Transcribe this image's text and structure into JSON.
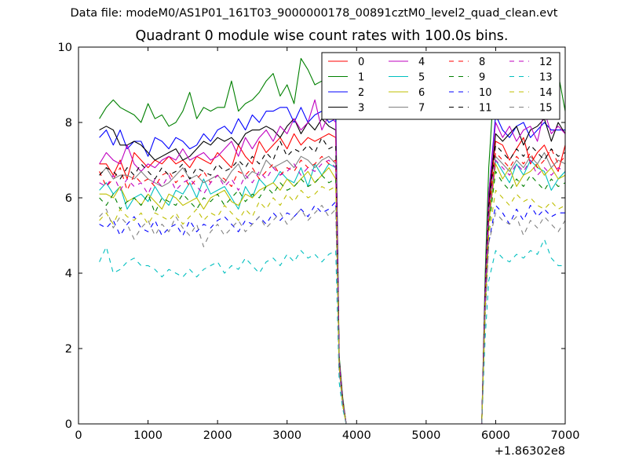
{
  "supertitle": "Data file: modeM0/AS1P01_161T03_9000000178_00891cztM0_level2_quad_clean.evt",
  "title": "Quadrant 0 module wise count rates with 100.0s bins.",
  "chart_data": {
    "type": "line",
    "title": "Quadrant 0 module wise count rates with 100.0s bins.",
    "xlabel": "",
    "ylabel": "",
    "x_offset_label": "+1.86302e8",
    "xlim": [
      0,
      7000
    ],
    "ylim": [
      0,
      10
    ],
    "xticks": [
      0,
      1000,
      2000,
      3000,
      4000,
      5000,
      6000,
      7000
    ],
    "yticks": [
      0,
      2,
      4,
      6,
      8,
      10
    ],
    "grid": false,
    "legend_position": "top-right",
    "legend_columns": 4,
    "x": [
      300,
      400,
      500,
      600,
      700,
      800,
      900,
      1000,
      1100,
      1200,
      1300,
      1400,
      1500,
      1600,
      1700,
      1800,
      1900,
      2000,
      2100,
      2200,
      2300,
      2400,
      2500,
      2600,
      2700,
      2800,
      2900,
      3000,
      3100,
      3200,
      3300,
      3400,
      3500,
      3600,
      3700,
      3750,
      3800,
      3850,
      3900,
      5800,
      5850,
      5900,
      6000,
      6100,
      6200,
      6300,
      6400,
      6500,
      6600,
      6700,
      6800,
      6900,
      7000
    ],
    "series": [
      {
        "name": "0",
        "color": "#ff0000",
        "dash": "solid",
        "values": [
          6.9,
          6.9,
          6.6,
          7.0,
          6.5,
          7.2,
          7.0,
          6.8,
          7.0,
          6.9,
          7.1,
          6.9,
          7.0,
          6.8,
          7.1,
          7.0,
          6.9,
          7.2,
          7.0,
          6.8,
          7.4,
          7.1,
          6.9,
          7.5,
          7.2,
          7.4,
          7.6,
          7.3,
          7.7,
          7.4,
          7.6,
          7.5,
          7.6,
          7.7,
          7.6,
          1.6,
          0.6,
          0.0,
          0.0,
          0.0,
          3.5,
          5.8,
          7.5,
          7.4,
          7.0,
          7.3,
          7.6,
          6.9,
          7.2,
          7.4,
          7.0,
          6.7,
          7.4
        ]
      },
      {
        "name": "1",
        "color": "#008000",
        "dash": "solid",
        "values": [
          8.1,
          8.4,
          8.6,
          8.4,
          8.3,
          8.2,
          8.0,
          8.5,
          8.1,
          8.2,
          7.9,
          8.0,
          8.3,
          8.8,
          8.1,
          8.4,
          8.3,
          8.4,
          8.4,
          9.1,
          8.3,
          8.5,
          8.6,
          8.8,
          9.1,
          9.3,
          8.7,
          9.0,
          8.5,
          9.7,
          9.4,
          9.0,
          9.1,
          8.6,
          8.5,
          1.8,
          0.7,
          0.0,
          0.0,
          0.0,
          4.0,
          6.8,
          9.7,
          9.0,
          8.8,
          8.5,
          9.0,
          8.7,
          8.9,
          9.4,
          8.9,
          9.3,
          8.3
        ]
      },
      {
        "name": "2",
        "color": "#0000ff",
        "dash": "solid",
        "values": [
          7.6,
          7.8,
          7.4,
          7.8,
          7.3,
          7.5,
          7.5,
          7.1,
          7.6,
          7.5,
          7.3,
          7.6,
          7.5,
          7.3,
          7.4,
          7.7,
          7.5,
          7.8,
          7.9,
          7.7,
          8.1,
          7.8,
          8.2,
          8.0,
          8.3,
          8.3,
          8.4,
          8.4,
          8.0,
          8.4,
          8.0,
          8.2,
          8.3,
          8.0,
          8.1,
          1.7,
          0.6,
          0.0,
          0.0,
          0.0,
          3.6,
          6.1,
          8.2,
          7.8,
          7.6,
          7.9,
          8.0,
          7.6,
          7.8,
          8.0,
          7.8,
          7.8,
          7.8
        ]
      },
      {
        "name": "3",
        "color": "#000000",
        "dash": "solid",
        "values": [
          7.8,
          7.9,
          7.8,
          7.4,
          7.4,
          7.5,
          7.4,
          7.2,
          7.0,
          7.1,
          7.2,
          7.3,
          7.0,
          7.1,
          7.3,
          7.5,
          7.4,
          7.6,
          7.5,
          7.6,
          7.4,
          7.7,
          7.8,
          7.8,
          7.9,
          7.8,
          7.6,
          7.9,
          8.1,
          7.7,
          8.0,
          7.8,
          8.1,
          7.9,
          7.8,
          1.7,
          0.6,
          0.0,
          0.0,
          0.0,
          3.6,
          5.9,
          7.7,
          7.5,
          7.7,
          7.9,
          7.4,
          7.8,
          7.9,
          8.1,
          7.5,
          8.0,
          7.7
        ]
      },
      {
        "name": "4",
        "color": "#bf00bf",
        "dash": "solid",
        "values": [
          6.9,
          7.2,
          7.0,
          6.9,
          7.4,
          6.9,
          6.7,
          6.9,
          6.8,
          7.0,
          7.1,
          7.0,
          7.3,
          7.0,
          7.1,
          7.2,
          7.0,
          7.1,
          7.3,
          7.5,
          7.1,
          7.6,
          7.3,
          7.6,
          7.8,
          7.5,
          7.9,
          7.7,
          8.1,
          7.8,
          8.0,
          8.6,
          7.8,
          8.2,
          8.0,
          1.7,
          0.6,
          0.0,
          0.0,
          0.0,
          3.6,
          6.1,
          8.0,
          7.6,
          7.9,
          7.5,
          7.8,
          7.9,
          7.5,
          8.3,
          7.7,
          7.9,
          7.7
        ]
      },
      {
        "name": "5",
        "color": "#00bfbf",
        "dash": "solid",
        "values": [
          6.2,
          6.4,
          6.1,
          6.3,
          5.7,
          6.0,
          6.1,
          5.9,
          6.3,
          6.0,
          5.8,
          6.2,
          6.1,
          6.4,
          6.0,
          6.5,
          6.1,
          6.2,
          6.3,
          6.0,
          5.7,
          6.3,
          6.0,
          6.5,
          6.3,
          6.4,
          6.7,
          6.5,
          6.4,
          6.8,
          6.3,
          6.9,
          6.6,
          6.9,
          6.8,
          1.5,
          0.5,
          0.0,
          0.0,
          0.0,
          3.2,
          5.5,
          7.0,
          6.7,
          6.4,
          6.9,
          6.6,
          7.0,
          6.8,
          6.7,
          6.2,
          6.5,
          6.7
        ]
      },
      {
        "name": "6",
        "color": "#bfbf00",
        "dash": "solid",
        "values": [
          6.1,
          6.1,
          6.0,
          6.3,
          5.9,
          6.0,
          5.8,
          6.1,
          5.9,
          5.7,
          6.1,
          6.0,
          5.8,
          5.9,
          6.0,
          5.7,
          6.0,
          6.1,
          6.2,
          5.9,
          5.8,
          6.1,
          6.0,
          6.2,
          6.3,
          6.4,
          6.2,
          6.5,
          6.3,
          6.5,
          6.7,
          6.4,
          6.6,
          6.8,
          6.5,
          1.5,
          0.5,
          0.0,
          0.0,
          0.0,
          3.1,
          5.3,
          6.9,
          6.5,
          6.8,
          6.3,
          6.6,
          6.7,
          6.9,
          6.6,
          6.8,
          6.5,
          6.6
        ]
      },
      {
        "name": "7",
        "color": "#808080",
        "dash": "solid",
        "values": [
          6.6,
          6.8,
          6.5,
          6.6,
          6.6,
          6.5,
          6.7,
          6.5,
          6.4,
          6.3,
          6.4,
          6.6,
          6.8,
          6.5,
          6.6,
          6.4,
          6.5,
          6.6,
          6.4,
          6.7,
          6.9,
          6.5,
          6.7,
          6.6,
          7.0,
          6.8,
          6.9,
          7.0,
          6.8,
          7.1,
          7.0,
          6.8,
          7.0,
          7.1,
          6.9,
          1.6,
          0.6,
          0.0,
          0.0,
          0.0,
          3.3,
          5.6,
          7.1,
          6.9,
          6.7,
          7.0,
          6.8,
          7.1,
          6.9,
          7.2,
          6.8,
          7.0,
          6.9
        ]
      },
      {
        "name": "8",
        "color": "#ff0000",
        "dash": "dashed",
        "values": [
          6.7,
          6.3,
          6.5,
          6.8,
          6.2,
          6.6,
          6.4,
          6.5,
          6.3,
          6.6,
          6.7,
          6.4,
          6.6,
          6.3,
          6.5,
          6.7,
          6.4,
          6.6,
          6.5,
          6.3,
          6.7,
          6.6,
          6.8,
          6.5,
          6.7,
          6.9,
          6.6,
          6.8,
          6.7,
          7.0,
          6.8,
          6.9,
          7.1,
          6.9,
          7.0,
          1.6,
          0.6,
          0.0,
          0.0,
          0.0,
          3.4,
          5.6,
          7.2,
          7.0,
          6.8,
          7.1,
          6.9,
          7.2,
          6.8,
          7.0,
          7.3,
          6.9,
          7.1
        ]
      },
      {
        "name": "9",
        "color": "#008000",
        "dash": "dashed",
        "values": [
          6.0,
          5.8,
          6.1,
          5.7,
          5.9,
          6.0,
          5.8,
          6.1,
          5.6,
          6.0,
          5.9,
          5.8,
          6.1,
          5.9,
          5.7,
          6.0,
          5.9,
          6.1,
          5.8,
          6.0,
          6.2,
          5.9,
          6.1,
          6.0,
          6.3,
          6.1,
          6.4,
          6.2,
          6.3,
          6.5,
          6.3,
          6.4,
          6.6,
          6.4,
          6.5,
          1.5,
          0.5,
          0.0,
          0.0,
          0.0,
          3.1,
          5.2,
          6.7,
          6.4,
          6.2,
          6.5,
          6.3,
          6.6,
          6.4,
          6.2,
          6.5,
          6.3,
          6.4
        ]
      },
      {
        "name": "10",
        "color": "#0000ff",
        "dash": "dashed",
        "values": [
          5.3,
          5.2,
          5.4,
          5.0,
          5.3,
          5.5,
          5.2,
          5.1,
          5.4,
          5.0,
          5.2,
          5.3,
          5.0,
          5.4,
          5.1,
          5.3,
          5.2,
          5.4,
          5.5,
          5.3,
          5.1,
          5.4,
          5.3,
          5.5,
          5.3,
          5.6,
          5.4,
          5.6,
          5.5,
          5.7,
          5.5,
          5.8,
          5.6,
          5.7,
          5.9,
          1.4,
          0.5,
          0.0,
          0.0,
          0.0,
          2.9,
          4.8,
          5.8,
          5.6,
          5.3,
          5.7,
          5.4,
          5.8,
          5.5,
          5.7,
          5.5,
          5.6,
          5.6
        ]
      },
      {
        "name": "11",
        "color": "#000000",
        "dash": "dashed",
        "values": [
          6.6,
          6.8,
          6.7,
          6.5,
          6.8,
          6.6,
          6.9,
          6.7,
          6.5,
          6.8,
          6.6,
          6.7,
          6.9,
          6.5,
          6.8,
          6.7,
          6.6,
          6.9,
          6.7,
          6.8,
          7.0,
          6.8,
          7.1,
          6.9,
          7.2,
          7.0,
          7.5,
          7.1,
          7.3,
          7.2,
          7.4,
          7.2,
          7.6,
          7.3,
          7.4,
          1.7,
          0.6,
          0.0,
          0.0,
          0.0,
          3.5,
          5.8,
          7.4,
          7.2,
          7.0,
          7.3,
          7.1,
          7.4,
          7.2,
          7.0,
          7.3,
          7.1,
          7.2
        ]
      },
      {
        "name": "12",
        "color": "#bf00bf",
        "dash": "dashed",
        "values": [
          6.4,
          6.3,
          6.6,
          6.2,
          6.5,
          6.3,
          6.4,
          6.1,
          6.5,
          6.3,
          6.6,
          6.2,
          6.4,
          6.5,
          6.3,
          6.1,
          6.4,
          6.6,
          6.3,
          6.5,
          6.2,
          6.6,
          6.4,
          6.7,
          6.5,
          6.8,
          6.6,
          6.7,
          6.9,
          6.6,
          6.8,
          6.7,
          6.9,
          7.0,
          6.8,
          1.6,
          0.6,
          0.0,
          0.0,
          0.0,
          3.3,
          5.5,
          7.0,
          6.8,
          6.6,
          6.9,
          6.7,
          7.0,
          6.6,
          6.8,
          6.6,
          6.8,
          6.7
        ]
      },
      {
        "name": "13",
        "color": "#00bfbf",
        "dash": "dashed",
        "values": [
          4.3,
          4.7,
          4.0,
          4.1,
          4.3,
          4.4,
          4.2,
          4.2,
          4.1,
          3.9,
          4.1,
          4.0,
          3.9,
          4.1,
          3.9,
          4.1,
          4.2,
          4.3,
          4.0,
          4.2,
          4.1,
          4.4,
          4.2,
          4.0,
          4.3,
          4.4,
          4.2,
          4.5,
          4.3,
          4.6,
          4.4,
          4.5,
          4.3,
          4.5,
          4.6,
          1.1,
          0.4,
          0.0,
          0.0,
          0.0,
          2.3,
          3.8,
          4.6,
          4.4,
          4.3,
          4.5,
          4.4,
          4.6,
          4.5,
          4.9,
          4.4,
          4.2,
          4.2
        ]
      },
      {
        "name": "14",
        "color": "#bfbf00",
        "dash": "dashed",
        "values": [
          5.4,
          5.6,
          5.3,
          5.7,
          5.5,
          5.4,
          5.6,
          5.3,
          5.6,
          5.5,
          5.4,
          5.6,
          5.3,
          5.5,
          5.7,
          5.4,
          5.6,
          5.5,
          5.8,
          5.6,
          5.4,
          5.7,
          5.5,
          5.9,
          5.7,
          6.0,
          5.8,
          6.1,
          5.9,
          6.2,
          6.0,
          6.1,
          6.3,
          6.2,
          6.3,
          1.5,
          0.5,
          0.0,
          0.0,
          0.0,
          3.0,
          5.0,
          6.2,
          6.0,
          5.8,
          6.1,
          5.9,
          6.0,
          5.8,
          5.7,
          5.9,
          5.7,
          5.8
        ]
      },
      {
        "name": "15",
        "color": "#808080",
        "dash": "dashed",
        "values": [
          5.5,
          5.7,
          5.2,
          5.5,
          5.3,
          4.9,
          5.2,
          5.4,
          5.0,
          5.3,
          5.1,
          5.5,
          5.2,
          5.0,
          5.3,
          4.7,
          5.1,
          5.3,
          5.0,
          5.2,
          5.4,
          5.1,
          5.3,
          5.5,
          5.2,
          5.4,
          5.6,
          5.3,
          5.5,
          5.7,
          5.4,
          5.6,
          5.8,
          5.5,
          5.7,
          1.4,
          0.5,
          0.0,
          0.0,
          0.0,
          2.9,
          4.8,
          5.6,
          5.4,
          5.3,
          5.5,
          5.0,
          5.4,
          5.2,
          5.5,
          5.3,
          5.1,
          5.4
        ]
      }
    ]
  }
}
